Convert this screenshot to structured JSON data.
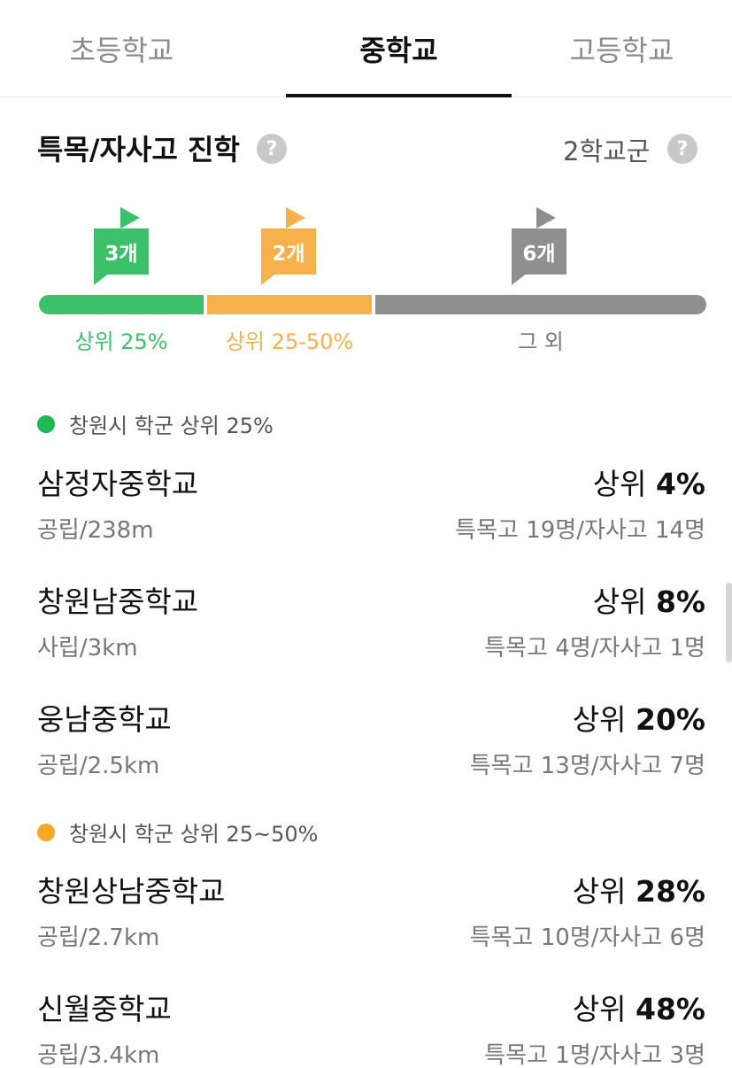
{
  "tabs": [
    {
      "label": "초등학교",
      "active": false
    },
    {
      "label": "중학교",
      "active": true
    },
    {
      "label": "고등학교",
      "active": false
    }
  ],
  "section": {
    "title": "특목/자사고 진학",
    "help_icon": "?",
    "cluster": "2학교군"
  },
  "distribution": {
    "flags": [
      {
        "label": "3개",
        "color": "#3cc06a"
      },
      {
        "label": "2개",
        "color": "#f6b04c"
      },
      {
        "label": "6개",
        "color": "#8f8f8f"
      }
    ],
    "labels": [
      "상위 25%",
      "상위 25-50%",
      "그 외"
    ]
  },
  "groups": [
    {
      "label": "창원시 학군 상위 25%",
      "color": "#1db954",
      "schools": [
        {
          "name": "삼정자중학교",
          "rank_prefix": "상위 ",
          "rank_value": "4%",
          "meta": "공립/238m",
          "stats": "특목고 19명/자사고 14명"
        },
        {
          "name": "창원남중학교",
          "rank_prefix": "상위 ",
          "rank_value": "8%",
          "meta": "사립/3km",
          "stats": "특목고 4명/자사고 1명"
        },
        {
          "name": "웅남중학교",
          "rank_prefix": "상위 ",
          "rank_value": "20%",
          "meta": "공립/2.5km",
          "stats": "특목고 13명/자사고 7명"
        }
      ]
    },
    {
      "label": "창원시 학군 상위 25~50%",
      "color": "#f9a825",
      "schools": [
        {
          "name": "창원상남중학교",
          "rank_prefix": "상위 ",
          "rank_value": "28%",
          "meta": "공립/2.7km",
          "stats": "특목고 10명/자사고 6명"
        },
        {
          "name": "신월중학교",
          "rank_prefix": "상위 ",
          "rank_value": "48%",
          "meta": "공립/3.4km",
          "stats": "특목고 1명/자사고 3명"
        }
      ]
    }
  ]
}
